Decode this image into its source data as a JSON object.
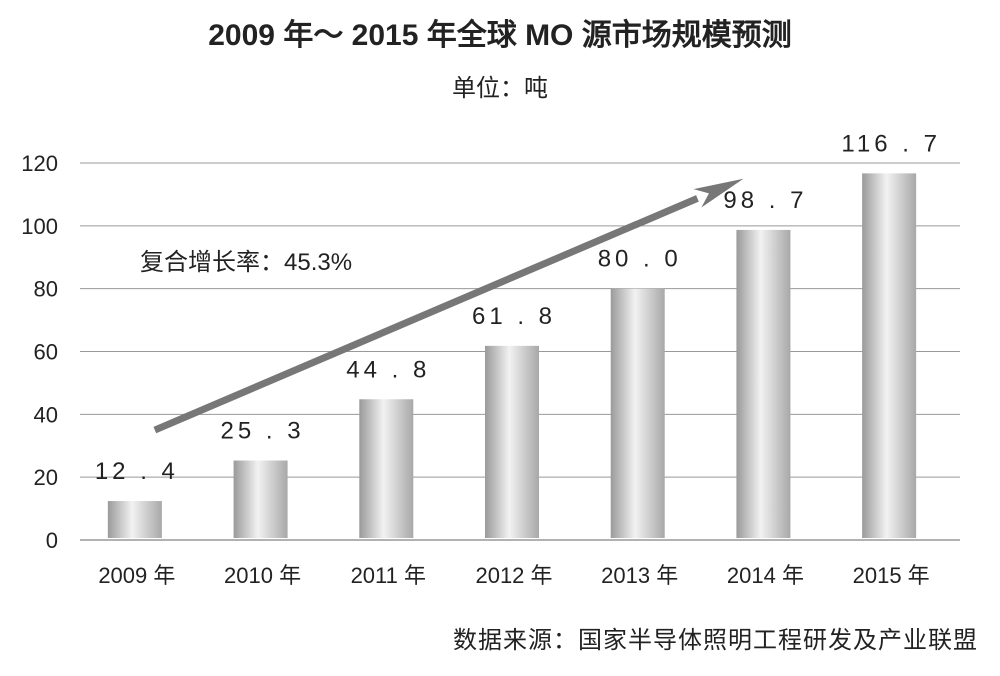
{
  "chart_data": {
    "type": "bar",
    "title": "2009 年～ 2015 年全球 MO 源市场规模预测",
    "subtitle": "单位：吨",
    "categories": [
      "2009 年",
      "2010 年",
      "2011 年",
      "2012 年",
      "2013 年",
      "2014 年",
      "2015 年"
    ],
    "values": [
      12.4,
      25.3,
      44.8,
      61.8,
      80.0,
      98.7,
      116.7
    ],
    "data_labels": [
      "12.4",
      "25.3",
      "44.8",
      "61.8",
      "80.0",
      "98.7",
      "116.7"
    ],
    "ylim": [
      0,
      120
    ],
    "yticks": [
      0,
      20,
      40,
      60,
      80,
      100,
      120
    ],
    "grid": true,
    "annotation": {
      "text": "复合增长率：45.3%",
      "arrow_from": [
        "2009 年",
        35
      ],
      "arrow_to": [
        "2014 年",
        115
      ]
    },
    "source": "数据来源：国家半导体照明工程研发及产业联盟",
    "colors": {
      "bar": "#c8c8c8",
      "arrow": "#777777",
      "grid": "#999999"
    }
  }
}
